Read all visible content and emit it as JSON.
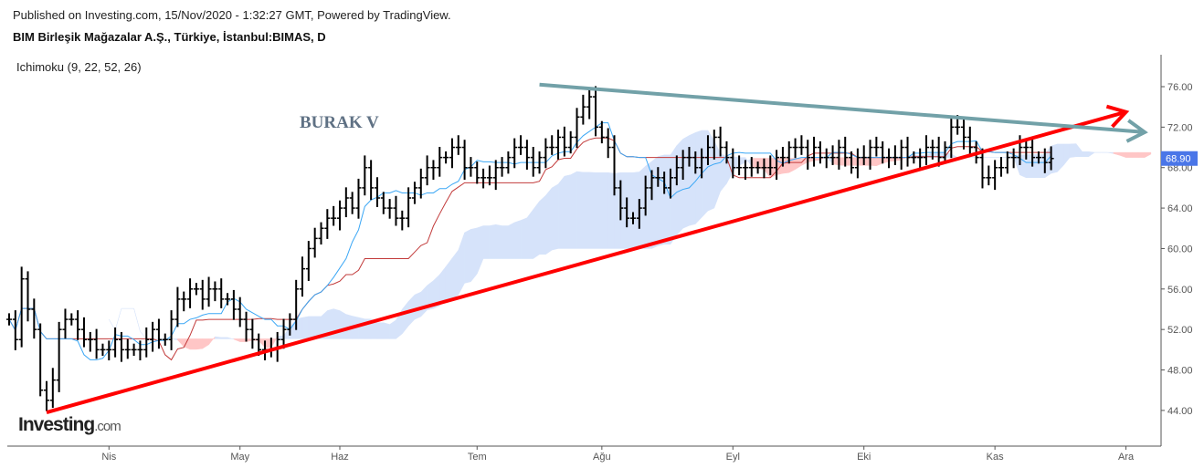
{
  "header": {
    "published": "Published on Investing.com, 15/Nov/2020 - 1:32:27 GMT, Powered by TradingView.",
    "symbol": "BIM Birleşik Mağazalar A.Ş., Türkiye, İstanbul:BIMAS, D",
    "indicator": "Ichimoku (9, 22, 52, 26)"
  },
  "logo": {
    "brand": "Investing",
    ".com": ".com",
    "suffix": ".com"
  },
  "chart_data": {
    "type": "ohlc",
    "title": "BIM Birleşik Mağazalar A.Ş., Türkiye, İstanbul:BIMAS, D",
    "ylim": [
      40.5,
      79
    ],
    "yticks": [
      "76.00",
      "72.00",
      "68.00",
      "64.00",
      "60.00",
      "56.00",
      "52.00",
      "48.00",
      "44.00"
    ],
    "ytick_values": [
      76,
      72,
      68,
      64,
      60,
      56,
      52,
      48,
      44
    ],
    "months": [
      {
        "label": "Nis",
        "day": 16
      },
      {
        "label": "May",
        "day": 37
      },
      {
        "label": "Haz",
        "day": 53
      },
      {
        "label": "Tem",
        "day": 75
      },
      {
        "label": "Ağu",
        "day": 95
      },
      {
        "label": "Eyl",
        "day": 116
      },
      {
        "label": "Eki",
        "day": 137
      },
      {
        "label": "Kas",
        "day": 158
      },
      {
        "label": "Ara",
        "day": 179
      }
    ],
    "last_price": "68.90",
    "closes": [
      53,
      51,
      57,
      54,
      52,
      46,
      45,
      47,
      52,
      53,
      53,
      52,
      51,
      51,
      50,
      50,
      50,
      51,
      50,
      50,
      50,
      50,
      51,
      52,
      51,
      51,
      53,
      55,
      55,
      56,
      56,
      55,
      56,
      56,
      55,
      55,
      54,
      53,
      52,
      51,
      50,
      50,
      50,
      51,
      52,
      53,
      56,
      58,
      60,
      61,
      62,
      63,
      63,
      64,
      65,
      64,
      66,
      68,
      66,
      65,
      64,
      64,
      63,
      63,
      65,
      66,
      67,
      68,
      68,
      69,
      69,
      70,
      70,
      68,
      68,
      67,
      67,
      67,
      68,
      68,
      69,
      70,
      70,
      69,
      68,
      69,
      70,
      70,
      71,
      70,
      71,
      73,
      74,
      75,
      72,
      71,
      70,
      66,
      64,
      63,
      63,
      64,
      66,
      67,
      67,
      66,
      67,
      68,
      69,
      69,
      68,
      69,
      70,
      71,
      70,
      69,
      68,
      68,
      68,
      68,
      68,
      68,
      68,
      69,
      69,
      70,
      70,
      70,
      69,
      70,
      69,
      69,
      69,
      70,
      69,
      68,
      69,
      69,
      70,
      70,
      69,
      69,
      69,
      70,
      69,
      69,
      69,
      70,
      70,
      69,
      70,
      72,
      72,
      71,
      70,
      69,
      67,
      67,
      68,
      68,
      69,
      69,
      70,
      70,
      69,
      69,
      68.5,
      68.9
    ],
    "ichimoku": {
      "tenkan": 9,
      "kijun": 22,
      "senkou_b": 52,
      "displacement": 26
    },
    "annotations": {
      "text": "BURAK V",
      "support_line": {
        "from": [
          6,
          43.8
        ],
        "to": [
          179,
          73.5
        ],
        "color": "#ff0000"
      },
      "resistance_line": {
        "from": [
          85,
          76.2
        ],
        "to": [
          182,
          71.5
        ],
        "color": "#72a1a8"
      }
    },
    "colors": {
      "bars": "#000000",
      "tenkan": "#3ba7f5",
      "kijun": "#c23b3b",
      "cloud_up": "#d6e3fa",
      "cloud_down": "#ffc6c6",
      "price_label": "#4a76e8"
    }
  }
}
